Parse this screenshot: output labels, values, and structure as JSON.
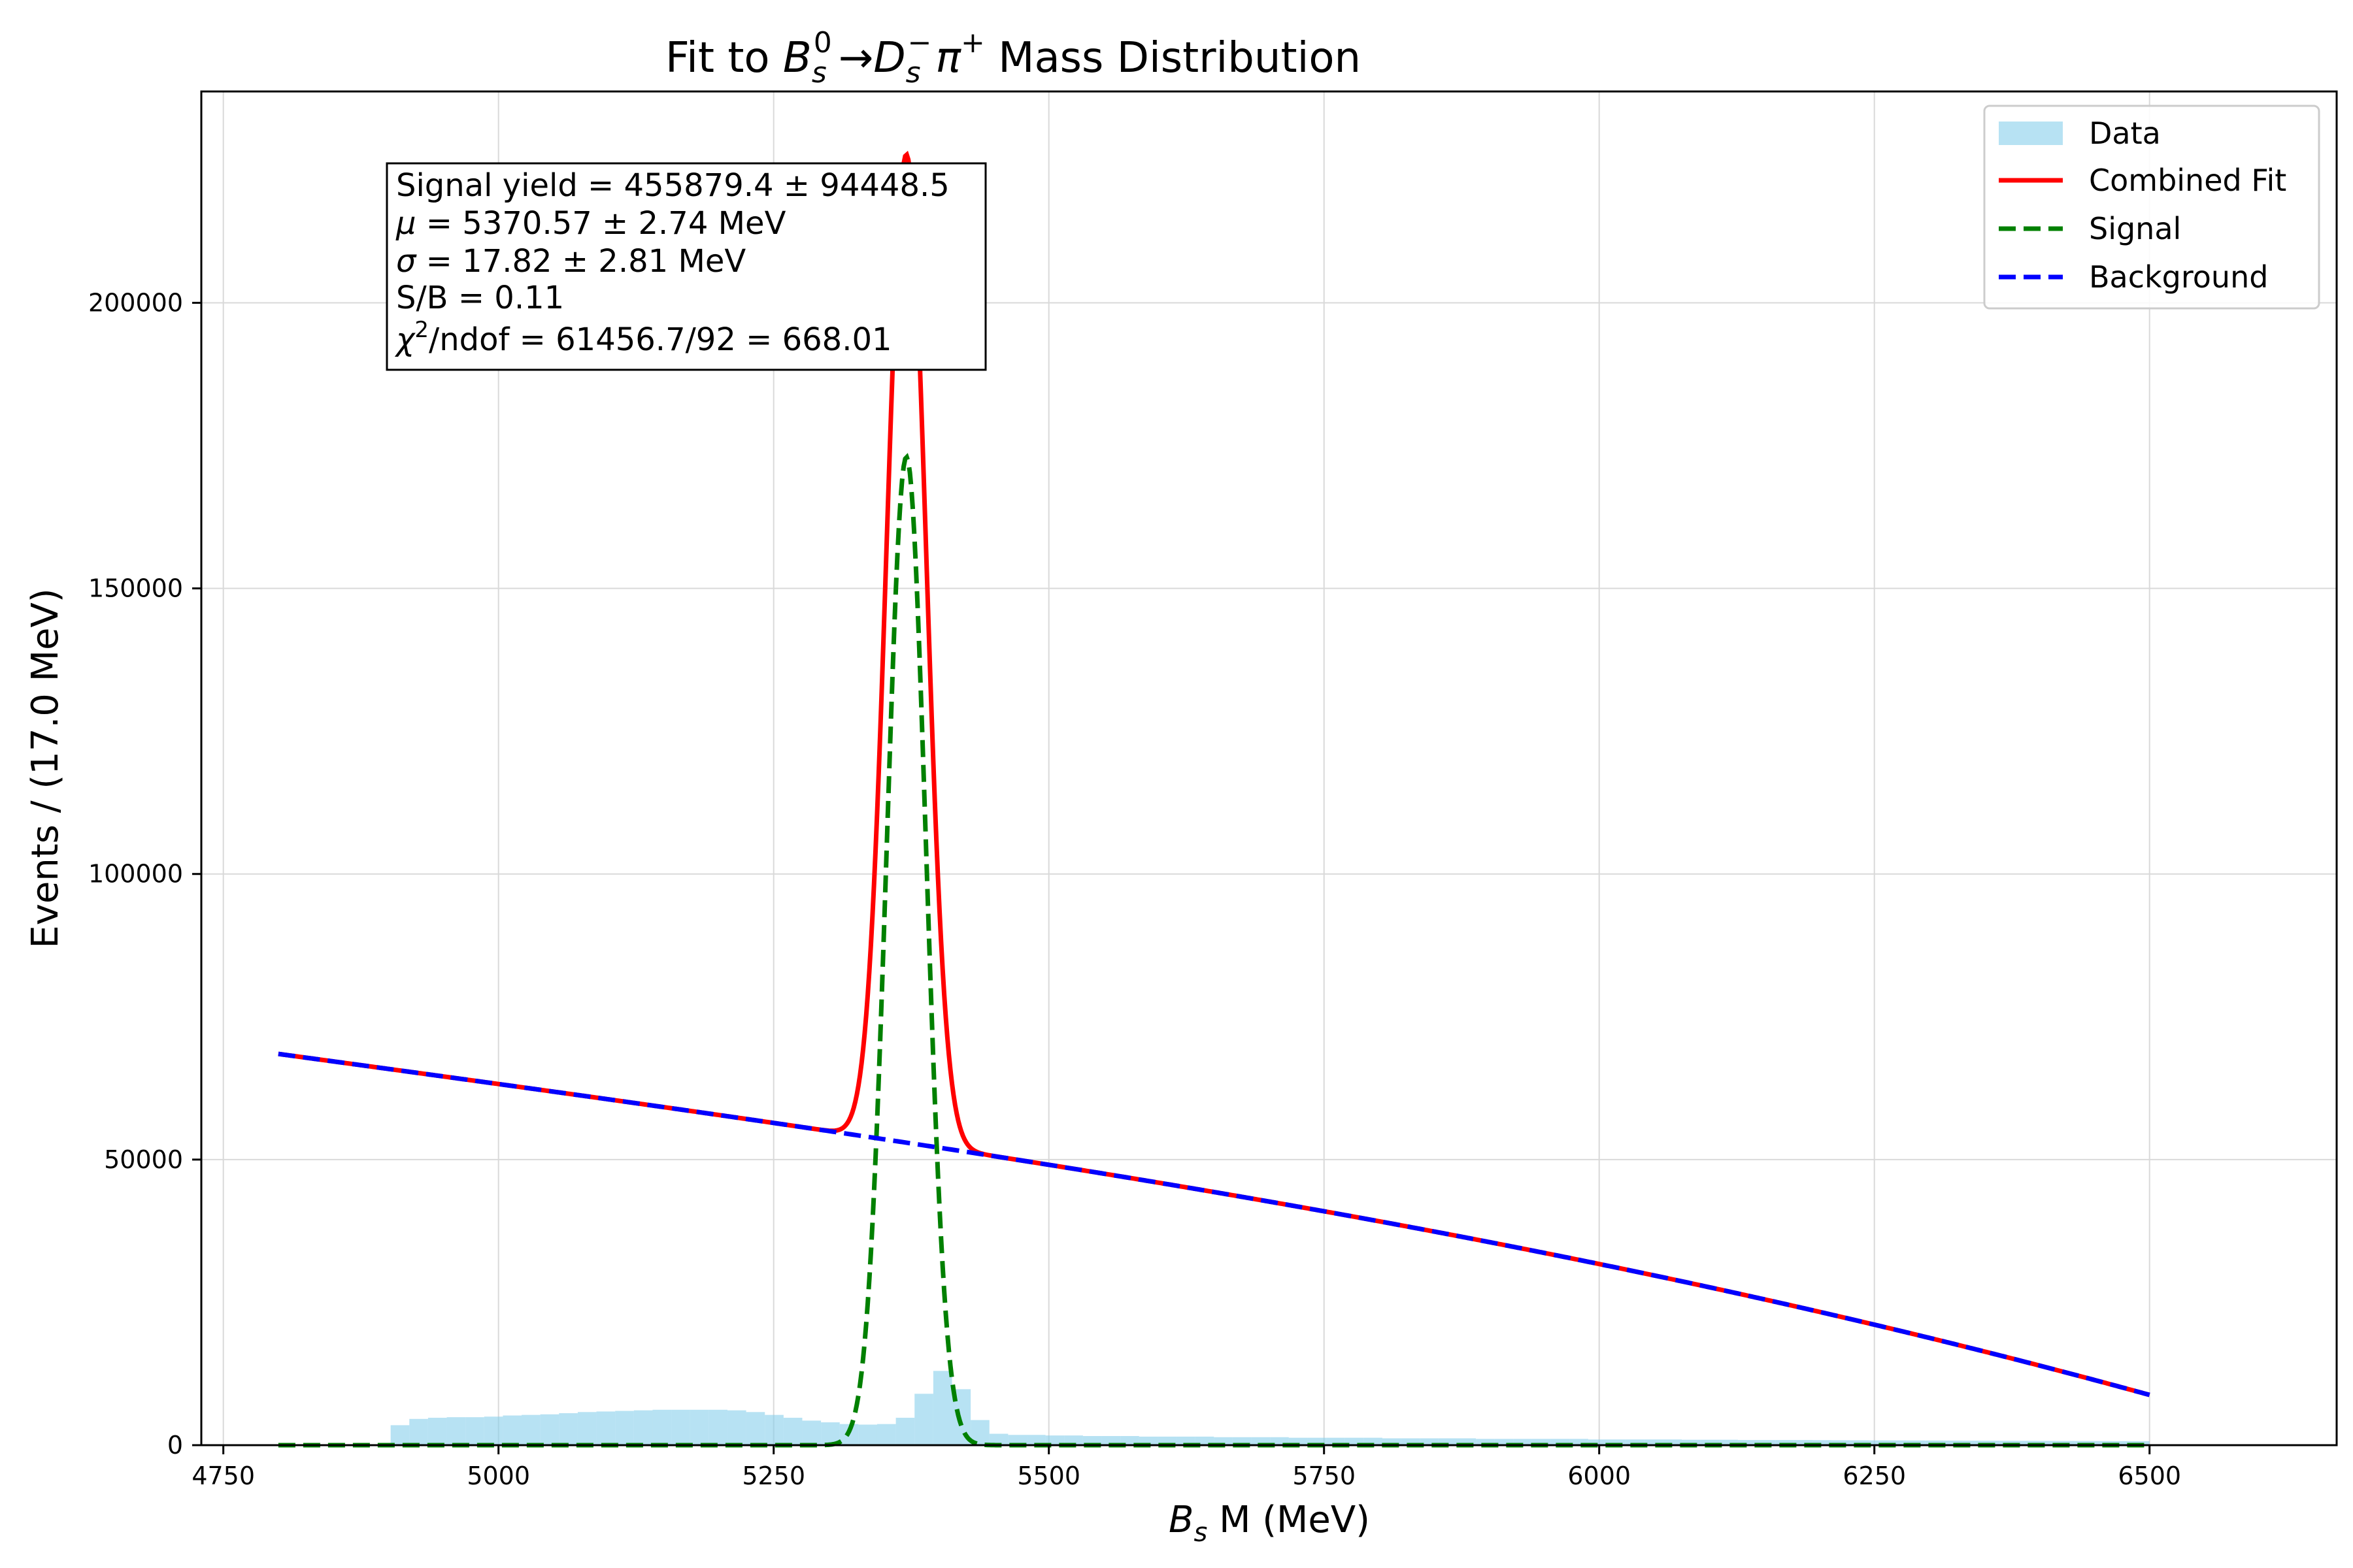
{
  "chart_data": {
    "type": "bar",
    "title": "Fit to B_s^0 → D_s^- π^+ Mass Distribution",
    "title_parts": {
      "pre": "Fit to ",
      "b": "B",
      "b_sub": "s",
      "b_sup": "0",
      "arrow": "→",
      "d": "D",
      "d_sub": "s",
      "d_sup": "−",
      "pi": "π",
      "pi_sup": "+",
      "post": " Mass Distribution"
    },
    "xlabel": "B_s M (MeV)",
    "xlabel_parts": {
      "b": "B",
      "b_sub": "s",
      "rest": " M (MeV)"
    },
    "ylabel": "Events / (17.0 MeV)",
    "xlim": [
      4730,
      6670
    ],
    "ylim": [
      0,
      237000
    ],
    "x_ticks": [
      4750,
      5000,
      5250,
      5500,
      5750,
      6000,
      6250,
      6500
    ],
    "y_ticks": [
      0,
      50000,
      100000,
      150000,
      200000
    ],
    "grid": true,
    "legend_position": "top-right",
    "legend": [
      {
        "label": "Data",
        "kind": "patch",
        "color": "#87ceeb"
      },
      {
        "label": "Combined Fit",
        "kind": "line",
        "color": "#ff0000"
      },
      {
        "label": "Signal",
        "kind": "dashed",
        "color": "#008000"
      },
      {
        "label": "Background",
        "kind": "dashed",
        "color": "#0000ff"
      }
    ],
    "stats_box": {
      "yield_line": "Signal yield = 455879.4 ± 94448.5",
      "mu_sym": "μ",
      "mu_rest": " = 5370.57 ± 2.74 MeV",
      "sigma_sym": "σ",
      "sigma_rest": " = 17.82 ± 2.81 MeV",
      "sb_line": "S/B = 0.11",
      "chi_sym": "χ",
      "chi_sup": "2",
      "chi_rest": "/ndof = 61456.7/92 = 668.01"
    },
    "histogram": {
      "name": "Data",
      "color": "#87ceeb",
      "bin_width": 17,
      "bin_starts": [
        4800,
        4817,
        4834,
        4851,
        4868,
        4885,
        4902,
        4919,
        4936,
        4953,
        4970,
        4987,
        5004,
        5021,
        5038,
        5055,
        5072,
        5089,
        5106,
        5123,
        5140,
        5157,
        5174,
        5191,
        5208,
        5225,
        5242,
        5259,
        5276,
        5293,
        5310,
        5327,
        5344,
        5361,
        5378,
        5395,
        5412,
        5429,
        5446,
        5463,
        5480,
        5497,
        5514,
        5531,
        5548,
        5565,
        5582,
        5599,
        5616,
        5633,
        5650,
        5667,
        5684,
        5701,
        5718,
        5735,
        5752,
        5769,
        5786,
        5803,
        5820,
        5837,
        5854,
        5871,
        5888,
        5905,
        5922,
        5939,
        5956,
        5973,
        5990,
        6007,
        6024,
        6041,
        6058,
        6075,
        6092,
        6109,
        6126,
        6143,
        6160,
        6177,
        6194,
        6211,
        6228,
        6245,
        6262,
        6279,
        6296,
        6313,
        6330,
        6347,
        6364,
        6381,
        6398,
        6415,
        6432,
        6449,
        6466,
        6483
      ],
      "counts": [
        0,
        0,
        0,
        0,
        0,
        0,
        3500,
        4600,
        4800,
        4900,
        4900,
        5000,
        5200,
        5300,
        5400,
        5600,
        5800,
        5900,
        6000,
        6100,
        6200,
        6200,
        6200,
        6200,
        6100,
        5800,
        5300,
        4800,
        4300,
        4000,
        3700,
        3600,
        3700,
        4800,
        9000,
        13000,
        9800,
        4400,
        2000,
        1800,
        1800,
        1700,
        1700,
        1600,
        1600,
        1600,
        1500,
        1500,
        1500,
        1500,
        1400,
        1400,
        1400,
        1400,
        1300,
        1300,
        1300,
        1300,
        1300,
        1200,
        1200,
        1200,
        1200,
        1200,
        1100,
        1100,
        1100,
        1100,
        1100,
        1100,
        1000,
        1000,
        1000,
        1000,
        1000,
        950,
        950,
        950,
        900,
        900,
        900,
        900,
        880,
        860,
        850,
        840,
        830,
        820,
        810,
        800,
        790,
        780,
        770,
        760,
        750,
        740,
        730,
        720,
        710,
        700
      ]
    },
    "series": [
      {
        "name": "Combined Fit",
        "color": "#ff0000",
        "style": "solid"
      },
      {
        "name": "Signal",
        "color": "#008000",
        "style": "dashed",
        "model": "gaussian",
        "mu": 5370.57,
        "sigma": 17.82,
        "peak": 173000
      },
      {
        "name": "Background",
        "color": "#0000ff",
        "style": "dashed",
        "model": "quadratic",
        "x": [
          4800,
          5300,
          5800,
          6500
        ],
        "y": [
          68500,
          55000,
          39200,
          8800
        ]
      }
    ],
    "fit_range": [
      4800,
      6500
    ]
  }
}
